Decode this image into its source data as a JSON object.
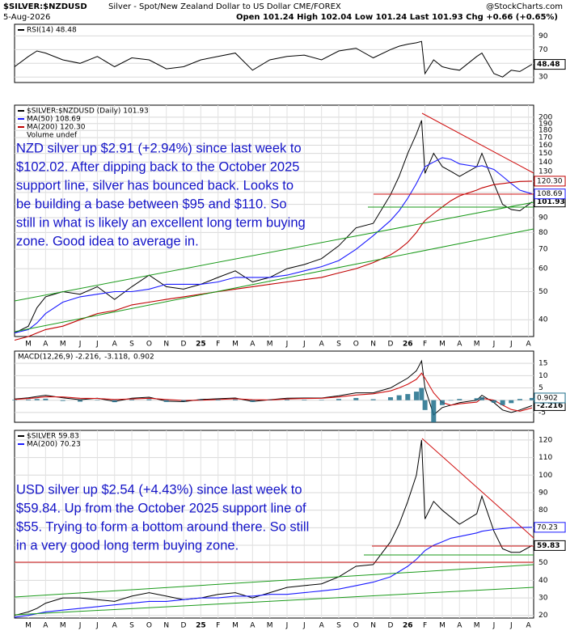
{
  "header": {
    "symbol": "$SILVER:$NZDUSD",
    "description": "Silver - Spot/New Zealand Dollar to US Dollar CME/FOREX",
    "date": "5-Aug-2026",
    "quote": "Open 101.24 High 102.04 Low 101.24 Last 101.93 Chg +0.66 (+0.65%)",
    "brand": "@StockCharts.com"
  },
  "chart_data": [
    {
      "type": "line",
      "legend": "stacked",
      "grid": true,
      "x": [
        -0.8,
        0,
        0.5,
        1,
        2,
        3,
        4,
        5,
        6,
        7,
        8,
        9,
        10,
        11,
        12,
        13,
        14,
        15,
        16,
        17,
        18,
        19,
        20,
        21,
        21.5,
        22,
        22.5,
        22.8,
        23,
        23.5,
        24,
        24.5,
        25,
        26,
        26.3,
        27,
        27.5,
        28,
        28.5,
        29.2
      ],
      "xlim": [
        -0.8,
        29.3
      ],
      "ylim": [
        22,
        107
      ],
      "yticks": [
        90,
        70,
        50,
        30
      ],
      "series": [
        {
          "name": "RSI(14) 48.48",
          "color": "#000000",
          "last_label": "48.48",
          "values": [
            45,
            60,
            68,
            65,
            55,
            50,
            60,
            45,
            58,
            55,
            42,
            45,
            55,
            60,
            65,
            40,
            55,
            60,
            62,
            55,
            68,
            72,
            58,
            70,
            75,
            78,
            80,
            82,
            35,
            55,
            45,
            42,
            40,
            60,
            65,
            35,
            30,
            40,
            38,
            48.48
          ]
        }
      ]
    },
    {
      "type": "line",
      "legend": "stacked",
      "grid": true,
      "log_scale": true,
      "x": [
        -0.8,
        0,
        0.5,
        1,
        2,
        3,
        4,
        5,
        6,
        7,
        8,
        9,
        10,
        11,
        12,
        13,
        14,
        15,
        16,
        17,
        18,
        19,
        20,
        21,
        21.5,
        22,
        22.5,
        22.8,
        23,
        23.5,
        24,
        24.5,
        25,
        26,
        26.3,
        27,
        27.5,
        28,
        28.5,
        29.2
      ],
      "xlim": [
        -0.8,
        29.3
      ],
      "ylim": [
        35,
        220
      ],
      "yticks": [
        200,
        190,
        180,
        170,
        160,
        150,
        140,
        130,
        120,
        110,
        100,
        90,
        80,
        70,
        60,
        50,
        40
      ],
      "xticks": [
        {
          "value": 0,
          "label": "M"
        },
        {
          "value": 1,
          "label": "A"
        },
        {
          "value": 2,
          "label": "M"
        },
        {
          "value": 3,
          "label": "J"
        },
        {
          "value": 4,
          "label": "J"
        },
        {
          "value": 5,
          "label": "A"
        },
        {
          "value": 6,
          "label": "S"
        },
        {
          "value": 7,
          "label": "O"
        },
        {
          "value": 8,
          "label": "N"
        },
        {
          "value": 9,
          "label": "D"
        },
        {
          "value": 10,
          "label": "25"
        },
        {
          "value": 11,
          "label": "F"
        },
        {
          "value": 12,
          "label": "M"
        },
        {
          "value": 13,
          "label": "A"
        },
        {
          "value": 14,
          "label": "M"
        },
        {
          "value": 15,
          "label": "J"
        },
        {
          "value": 16,
          "label": "J"
        },
        {
          "value": 17,
          "label": "A"
        },
        {
          "value": 18,
          "label": "S"
        },
        {
          "value": 19,
          "label": "O"
        },
        {
          "value": 20,
          "label": "N"
        },
        {
          "value": 21,
          "label": "D"
        },
        {
          "value": 22,
          "label": "26"
        },
        {
          "value": 23,
          "label": "F"
        },
        {
          "value": 24,
          "label": "M"
        },
        {
          "value": 25,
          "label": "A"
        },
        {
          "value": 26,
          "label": "M"
        },
        {
          "value": 27,
          "label": "J"
        },
        {
          "value": 28,
          "label": "J"
        },
        {
          "value": 29,
          "label": "A"
        }
      ],
      "series": [
        {
          "name": "$SILVER:$NZDUSD (Daily) 101.93",
          "color": "#000000",
          "last_label": "101.93",
          "values": [
            36,
            38,
            44,
            48,
            50,
            49,
            52,
            47,
            52,
            57,
            52,
            51,
            53,
            56,
            59,
            54,
            56,
            60,
            62,
            65,
            72,
            83,
            86,
            108,
            125,
            150,
            175,
            195,
            128,
            150,
            135,
            130,
            125,
            135,
            150,
            118,
            100,
            96,
            95,
            101.93
          ]
        },
        {
          "name": "MA(50) 108.69",
          "color": "#1a1aff",
          "last_label": "108.69",
          "values": [
            36,
            37,
            39,
            42,
            46,
            48,
            49,
            50,
            50,
            51,
            53,
            53,
            53,
            54,
            56,
            56,
            56,
            57,
            59,
            61,
            64,
            70,
            78,
            88,
            95,
            105,
            118,
            128,
            135,
            140,
            145,
            143,
            138,
            135,
            136,
            132,
            125,
            118,
            112,
            108.69
          ]
        },
        {
          "name": "MA(200) 120.30",
          "color": "#c00000",
          "last_label": "120.30",
          "values": [
            34,
            35,
            36,
            37,
            38,
            40,
            42,
            43,
            45,
            46,
            47,
            48,
            49,
            50,
            51,
            52,
            53,
            54,
            55,
            56,
            58,
            60,
            63,
            67,
            70,
            74,
            80,
            85,
            88,
            93,
            98,
            103,
            107,
            112,
            114,
            117,
            118,
            119,
            120,
            120.3
          ]
        }
      ],
      "note": "Volume undef",
      "annotation": [
        "NZD silver up $2.91 (+2.94%) since last week to",
        "$102.02. After dipping back to the October 2025",
        "support line, silver has bounced back. Looks to",
        "be building a base between $95 and $110. So",
        "still in what is likely an excellent long term buying",
        "zone. Good idea to average in."
      ]
    },
    {
      "type": "line",
      "legend": "inline",
      "grid": true,
      "x": [
        -0.8,
        0,
        0.5,
        1,
        2,
        3,
        4,
        5,
        6,
        7,
        8,
        9,
        10,
        11,
        12,
        13,
        14,
        15,
        16,
        17,
        18,
        19,
        20,
        21,
        21.5,
        22,
        22.5,
        22.8,
        23,
        23.5,
        24,
        24.5,
        25,
        26,
        26.3,
        27,
        27.5,
        28,
        28.5,
        29.2
      ],
      "xlim": [
        -0.8,
        29.3
      ],
      "ylim": [
        -9,
        20
      ],
      "yticks": [
        15,
        10,
        5,
        0,
        -5
      ],
      "series": [
        {
          "name": "MACD(12,26,9) -2.216,",
          "color": "#000000",
          "last_label": "-2.216",
          "values": [
            0.5,
            1,
            1.5,
            2,
            1,
            0.2,
            0.8,
            -0.5,
            0.8,
            1.2,
            -0.4,
            -0.6,
            0.3,
            0.6,
            0.9,
            -0.5,
            0.2,
            0.8,
            0.9,
            0.9,
            1.8,
            3,
            3,
            5,
            7,
            9,
            12,
            16,
            5,
            -6,
            -3,
            -2,
            -1,
            0,
            2,
            -1,
            -4,
            -5,
            -4,
            -2.216
          ]
        },
        {
          "name": "-3.118,",
          "color": "#d01010",
          "values": [
            0.3,
            0.7,
            1,
            1.4,
            1.3,
            0.8,
            0.7,
            0.3,
            0.5,
            0.8,
            0.3,
            -0.1,
            0,
            0.3,
            0.6,
            0.2,
            0.1,
            0.5,
            0.7,
            0.8,
            1.3,
            2.1,
            2.6,
            3.8,
            5,
            6.5,
            8.5,
            11,
            9,
            3,
            -1,
            -2,
            -1.5,
            -0.8,
            0.8,
            0,
            -2,
            -3.8,
            -4.5,
            -3.118
          ]
        },
        {
          "name": "0.902",
          "color": "#1f6f8b",
          "style": "bar",
          "last_label": "0.902",
          "values": [
            0.2,
            0.3,
            0.5,
            0.6,
            -0.3,
            -0.6,
            0.1,
            -0.8,
            0.3,
            0.4,
            -0.7,
            -0.5,
            0.3,
            0.3,
            0.3,
            -0.7,
            0.1,
            0.3,
            0.2,
            0.1,
            0.5,
            0.9,
            0.4,
            1.2,
            2,
            2.5,
            3.5,
            5,
            -4,
            -9,
            -2,
            0,
            0.5,
            0.8,
            1.2,
            -1,
            -2,
            -1.2,
            0.5,
            0.902
          ]
        }
      ]
    },
    {
      "type": "line",
      "legend": "stacked",
      "grid": true,
      "x": [
        -0.8,
        0,
        0.5,
        1,
        2,
        3,
        4,
        5,
        6,
        7,
        8,
        9,
        10,
        11,
        12,
        13,
        14,
        15,
        16,
        17,
        18,
        19,
        20,
        21,
        21.5,
        22,
        22.5,
        22.8,
        23,
        23.5,
        24,
        24.5,
        25,
        26,
        26.3,
        27,
        27.5,
        28,
        28.5,
        29.2
      ],
      "xlim": [
        -0.8,
        29.3
      ],
      "ylim": [
        18.5,
        125.5
      ],
      "yticks": [
        120,
        110,
        100,
        90,
        80,
        70,
        60,
        50,
        40,
        30,
        20
      ],
      "xticks": [
        {
          "value": 0,
          "label": "M"
        },
        {
          "value": 1,
          "label": "A"
        },
        {
          "value": 2,
          "label": "M"
        },
        {
          "value": 3,
          "label": "J"
        },
        {
          "value": 4,
          "label": "J"
        },
        {
          "value": 5,
          "label": "A"
        },
        {
          "value": 6,
          "label": "S"
        },
        {
          "value": 7,
          "label": "O"
        },
        {
          "value": 8,
          "label": "N"
        },
        {
          "value": 9,
          "label": "D"
        },
        {
          "value": 10,
          "label": "25"
        },
        {
          "value": 11,
          "label": "F"
        },
        {
          "value": 12,
          "label": "M"
        },
        {
          "value": 13,
          "label": "A"
        },
        {
          "value": 14,
          "label": "M"
        },
        {
          "value": 15,
          "label": "J"
        },
        {
          "value": 16,
          "label": "J"
        },
        {
          "value": 17,
          "label": "A"
        },
        {
          "value": 18,
          "label": "S"
        },
        {
          "value": 19,
          "label": "O"
        },
        {
          "value": 20,
          "label": "N"
        },
        {
          "value": 21,
          "label": "D"
        },
        {
          "value": 22,
          "label": "26"
        },
        {
          "value": 23,
          "label": "F"
        },
        {
          "value": 24,
          "label": "M"
        },
        {
          "value": 25,
          "label": "A"
        },
        {
          "value": 26,
          "label": "M"
        },
        {
          "value": 27,
          "label": "J"
        },
        {
          "value": 28,
          "label": "J"
        },
        {
          "value": 29,
          "label": "A"
        }
      ],
      "series": [
        {
          "name": "$SILVER 59.83",
          "color": "#000000",
          "last_label": "59.83",
          "values": [
            20,
            22,
            24,
            27,
            30,
            30,
            29,
            28,
            31,
            33,
            31,
            29,
            30,
            32,
            33,
            30,
            33,
            36,
            37,
            38,
            42,
            48,
            49,
            62,
            72,
            85,
            100,
            120,
            75,
            85,
            80,
            76,
            72,
            78,
            88,
            68,
            58,
            56,
            56,
            59.83
          ]
        },
        {
          "name": "MA(200) 70.23",
          "color": "#1a1aff",
          "last_label": "70.23",
          "values": [
            19,
            20,
            21,
            22,
            23,
            24,
            25,
            26,
            27,
            28,
            28,
            29,
            30,
            30,
            31,
            31,
            32,
            32,
            33,
            34,
            35,
            37,
            39,
            42,
            45,
            48,
            52,
            55,
            57,
            60,
            62,
            64,
            65,
            67,
            68,
            69,
            69.5,
            70,
            70.1,
            70.23
          ]
        }
      ],
      "annotation": [
        "USD silver up $2.54 (+4.43%) since last week to",
        "$59.84. Up from the October 2025 support line of",
        "$55. Trying to form a bottom around there. So still",
        "in a very good long term buying zone."
      ]
    }
  ]
}
